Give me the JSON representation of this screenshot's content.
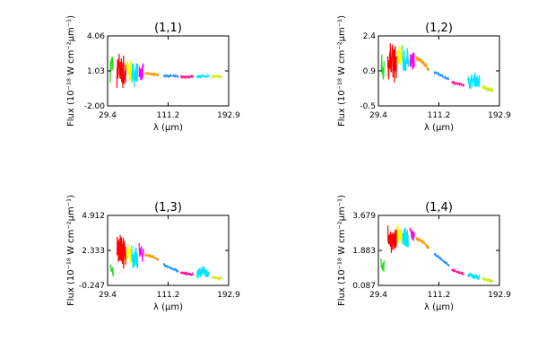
{
  "chart_data": [
    {
      "type": "line",
      "title": "(1,1)",
      "xlabel": "λ (μm)",
      "ylabel": "Flux (10⁻¹⁸ W cm⁻²μm⁻¹)",
      "xlim": [
        29.4,
        192.9
      ],
      "ylim": [
        -2.0,
        4.06
      ],
      "xticks": [
        "29.4",
        "111.2",
        "192.9"
      ],
      "yticks": [
        "-2.00",
        "1.03",
        "4.06"
      ],
      "series": [
        {
          "color": "#22dd22",
          "x": [
            33,
            35,
            37
          ],
          "y": [
            1.2,
            1.6,
            1.4
          ],
          "amp": 1.2
        },
        {
          "color": "#ff0000",
          "x": [
            42,
            45,
            48,
            51,
            54
          ],
          "y": [
            1.0,
            1.2,
            0.9,
            1.0,
            0.8
          ],
          "amp": 1.6
        },
        {
          "color": "#ffff00",
          "x": [
            55,
            58,
            61
          ],
          "y": [
            1.1,
            1.0,
            0.9
          ],
          "amp": 1.0
        },
        {
          "color": "#00e5ff",
          "x": [
            62,
            65,
            68,
            70
          ],
          "y": [
            0.8,
            0.7,
            0.8,
            0.7
          ],
          "amp": 1.1
        },
        {
          "color": "#ff00ff",
          "x": [
            72,
            75,
            78
          ],
          "y": [
            1.0,
            0.9,
            0.9
          ],
          "amp": 0.8
        },
        {
          "color": "#ff9900",
          "x": [
            80,
            90,
            98
          ],
          "y": [
            0.8,
            0.75,
            0.7
          ],
          "amp": 0.1
        },
        {
          "color": "#1e90ff",
          "x": [
            105,
            115,
            125
          ],
          "y": [
            0.6,
            0.6,
            0.55
          ],
          "amp": 0.08
        },
        {
          "color": "#ff1493",
          "x": [
            128,
            138,
            145
          ],
          "y": [
            0.55,
            0.5,
            0.55
          ],
          "amp": 0.08
        },
        {
          "color": "#00e5ff",
          "x": [
            150,
            160,
            166
          ],
          "y": [
            0.55,
            0.6,
            0.55
          ],
          "amp": 0.1
        },
        {
          "color": "#ccee22",
          "x": [
            170,
            177,
            184
          ],
          "y": [
            0.5,
            0.55,
            0.5
          ],
          "amp": 0.1
        }
      ]
    },
    {
      "type": "line",
      "title": "(1,2)",
      "xlabel": "λ (μm)",
      "ylabel": "Flux (10⁻¹⁸ W cm⁻²μm⁻¹)",
      "xlim": [
        29.4,
        192.9
      ],
      "ylim": [
        -0.5,
        2.4
      ],
      "xticks": [
        "29.4",
        "111.2",
        "192.9"
      ],
      "yticks": [
        "-0.5",
        "0.9",
        "2.4"
      ],
      "series": [
        {
          "color": "#22dd22",
          "x": [
            33,
            35,
            37
          ],
          "y": [
            1.2,
            1.0,
            0.9
          ],
          "amp": 0.6
        },
        {
          "color": "#ff0000",
          "x": [
            42,
            45,
            48,
            51,
            54
          ],
          "y": [
            1.3,
            1.5,
            1.4,
            1.3,
            1.2
          ],
          "amp": 0.9
        },
        {
          "color": "#ffff00",
          "x": [
            55,
            58,
            61
          ],
          "y": [
            1.5,
            1.6,
            1.5
          ],
          "amp": 0.6
        },
        {
          "color": "#00e5ff",
          "x": [
            62,
            65,
            68,
            70
          ],
          "y": [
            1.4,
            1.3,
            1.3,
            1.2
          ],
          "amp": 0.7
        },
        {
          "color": "#ff00ff",
          "x": [
            72,
            75,
            78
          ],
          "y": [
            1.5,
            1.4,
            1.3
          ],
          "amp": 0.4
        },
        {
          "color": "#ff9900",
          "x": [
            80,
            90,
            98
          ],
          "y": [
            1.5,
            1.3,
            1.0
          ],
          "amp": 0.1
        },
        {
          "color": "#1e90ff",
          "x": [
            105,
            115,
            125
          ],
          "y": [
            0.9,
            0.75,
            0.6
          ],
          "amp": 0.05
        },
        {
          "color": "#ff1493",
          "x": [
            128,
            138,
            145
          ],
          "y": [
            0.5,
            0.4,
            0.35
          ],
          "amp": 0.05
        },
        {
          "color": "#00e5ff",
          "x": [
            150,
            160,
            166
          ],
          "y": [
            0.45,
            0.6,
            0.5
          ],
          "amp": 0.3
        },
        {
          "color": "#ccee22",
          "x": [
            170,
            177,
            184
          ],
          "y": [
            0.3,
            0.2,
            0.15
          ],
          "amp": 0.1
        }
      ]
    },
    {
      "type": "line",
      "title": "(1,3)",
      "xlabel": "λ (μm)",
      "ylabel": "Flux (10⁻¹⁸ W cm⁻²μm⁻¹)",
      "xlim": [
        29.4,
        192.9
      ],
      "ylim": [
        -0.247,
        4.912
      ],
      "xticks": [
        "29.4",
        "111.2",
        "192.9"
      ],
      "yticks": [
        "-0.247",
        "2.333",
        "4.912"
      ],
      "series": [
        {
          "color": "#22dd22",
          "x": [
            33,
            35,
            37
          ],
          "y": [
            0.9,
            0.8,
            0.7
          ],
          "amp": 0.5
        },
        {
          "color": "#ff0000",
          "x": [
            42,
            45,
            48,
            51,
            54
          ],
          "y": [
            2.5,
            2.4,
            2.2,
            2.1,
            2.0
          ],
          "amp": 1.2
        },
        {
          "color": "#ffff00",
          "x": [
            55,
            58,
            61
          ],
          "y": [
            2.2,
            2.1,
            2.0
          ],
          "amp": 0.8
        },
        {
          "color": "#00e5ff",
          "x": [
            62,
            65,
            68,
            70
          ],
          "y": [
            1.9,
            1.8,
            1.7,
            1.6
          ],
          "amp": 0.9
        },
        {
          "color": "#ff00ff",
          "x": [
            72,
            75,
            78
          ],
          "y": [
            2.3,
            2.1,
            2.0
          ],
          "amp": 0.6
        },
        {
          "color": "#ff9900",
          "x": [
            80,
            90,
            98
          ],
          "y": [
            2.0,
            1.9,
            1.6
          ],
          "amp": 0.12
        },
        {
          "color": "#1e90ff",
          "x": [
            105,
            115,
            125
          ],
          "y": [
            1.3,
            1.0,
            0.8
          ],
          "amp": 0.08
        },
        {
          "color": "#ff1493",
          "x": [
            128,
            138,
            145
          ],
          "y": [
            0.7,
            0.6,
            0.55
          ],
          "amp": 0.08
        },
        {
          "color": "#00e5ff",
          "x": [
            150,
            160,
            166
          ],
          "y": [
            0.6,
            0.8,
            0.6
          ],
          "amp": 0.4
        },
        {
          "color": "#ccee22",
          "x": [
            170,
            177,
            184
          ],
          "y": [
            0.4,
            0.3,
            0.25
          ],
          "amp": 0.1
        }
      ]
    },
    {
      "type": "line",
      "title": "(1,4)",
      "xlabel": "λ (μm)",
      "ylabel": "Flux (10⁻¹⁸ W cm⁻²μm⁻¹)",
      "xlim": [
        29.4,
        192.9
      ],
      "ylim": [
        0.087,
        3.679
      ],
      "xticks": [
        "29.4",
        "111.2",
        "192.9"
      ],
      "yticks": [
        "0.087",
        "1.883",
        "3.679"
      ],
      "series": [
        {
          "color": "#22dd22",
          "x": [
            33,
            35,
            37
          ],
          "y": [
            1.2,
            1.1,
            1.0
          ],
          "amp": 0.4
        },
        {
          "color": "#ff0000",
          "x": [
            42,
            45,
            48,
            51,
            54
          ],
          "y": [
            2.6,
            2.5,
            2.4,
            2.3,
            2.3
          ],
          "amp": 0.7
        },
        {
          "color": "#ffff00",
          "x": [
            55,
            58,
            61
          ],
          "y": [
            2.8,
            2.7,
            2.6
          ],
          "amp": 0.5
        },
        {
          "color": "#00e5ff",
          "x": [
            62,
            65,
            68,
            70
          ],
          "y": [
            2.6,
            2.5,
            2.4,
            2.3
          ],
          "amp": 0.6
        },
        {
          "color": "#ff00ff",
          "x": [
            72,
            75,
            78
          ],
          "y": [
            2.9,
            2.7,
            2.6
          ],
          "amp": 0.4
        },
        {
          "color": "#ff9900",
          "x": [
            80,
            90,
            98
          ],
          "y": [
            2.5,
            2.3,
            2.0
          ],
          "amp": 0.1
        },
        {
          "color": "#1e90ff",
          "x": [
            105,
            115,
            125
          ],
          "y": [
            1.7,
            1.4,
            1.1
          ],
          "amp": 0.06
        },
        {
          "color": "#ff1493",
          "x": [
            128,
            138,
            145
          ],
          "y": [
            0.9,
            0.75,
            0.65
          ],
          "amp": 0.06
        },
        {
          "color": "#00e5ff",
          "x": [
            150,
            160,
            166
          ],
          "y": [
            0.6,
            0.55,
            0.5
          ],
          "amp": 0.15
        },
        {
          "color": "#ccee22",
          "x": [
            170,
            177,
            184
          ],
          "y": [
            0.45,
            0.35,
            0.3
          ],
          "amp": 0.1
        }
      ]
    }
  ]
}
